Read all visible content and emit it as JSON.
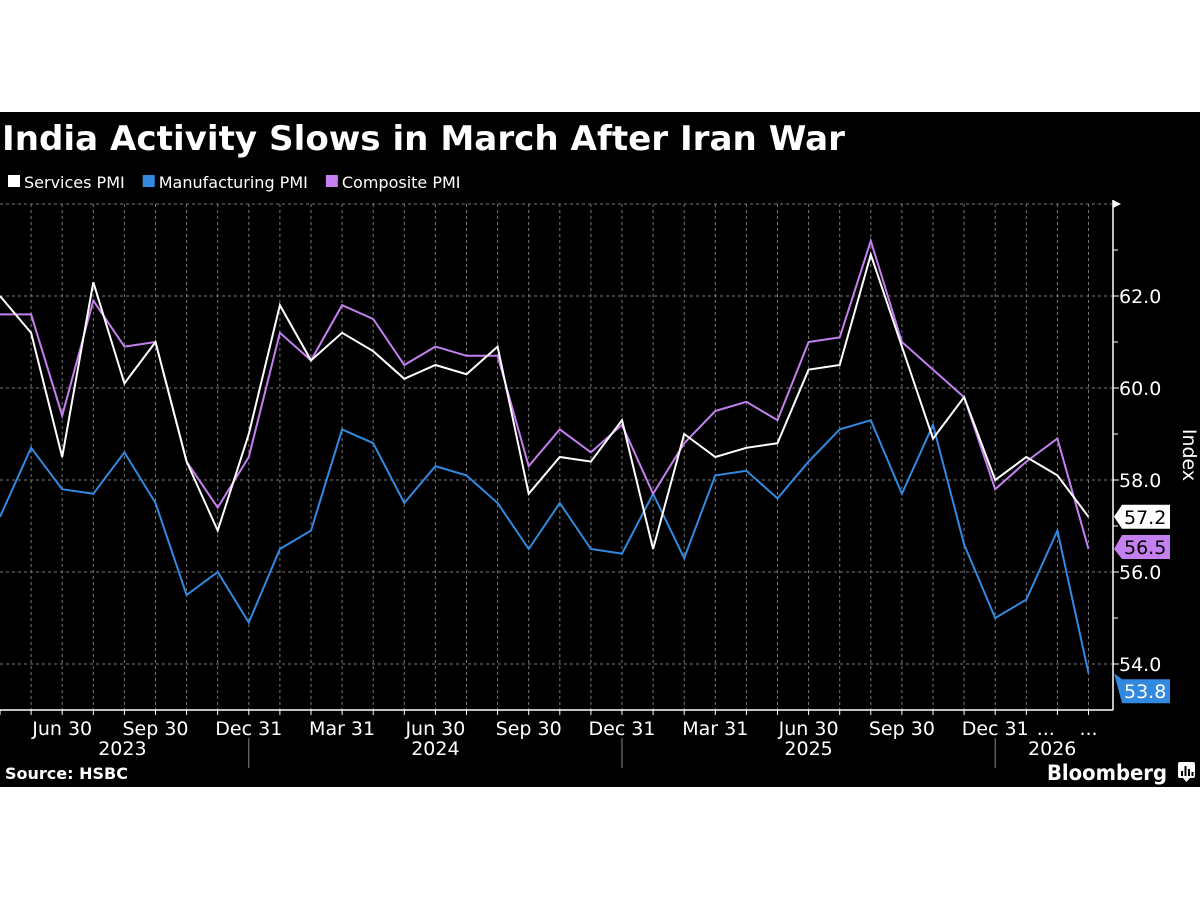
{
  "chart_data": {
    "type": "line",
    "title": "India Activity Slows in March After Iran War",
    "ylabel": "Index",
    "ylim": [
      53.0,
      64.0
    ],
    "y_ticks": [
      "54.0",
      "56.0",
      "58.0",
      "60.0",
      "62.0"
    ],
    "grid": true,
    "legend_position": "top-left",
    "x": [
      "2023-04-30",
      "2023-05-31",
      "2023-06-30",
      "2023-07-31",
      "2023-08-31",
      "2023-09-30",
      "2023-10-31",
      "2023-11-30",
      "2023-12-31",
      "2024-01-31",
      "2024-02-29",
      "2024-03-31",
      "2024-04-30",
      "2024-05-31",
      "2024-06-30",
      "2024-07-31",
      "2024-08-31",
      "2024-09-30",
      "2024-10-31",
      "2024-11-30",
      "2024-12-31",
      "2025-01-31",
      "2025-02-28",
      "2025-03-31",
      "2025-04-30",
      "2025-05-31",
      "2025-06-30",
      "2025-07-31",
      "2025-08-31",
      "2025-09-30",
      "2025-10-31",
      "2025-11-30",
      "2025-12-31",
      "2026-01-31",
      "2026-02-28",
      "2026-03-31"
    ],
    "x_ticks": [
      {
        "date": "2023-06-30",
        "label": "Jun 30"
      },
      {
        "date": "2023-09-30",
        "label": "Sep 30"
      },
      {
        "date": "2023-12-31",
        "label": "Dec 31"
      },
      {
        "date": "2024-03-31",
        "label": "Mar 31"
      },
      {
        "date": "2024-06-30",
        "label": "Jun 30"
      },
      {
        "date": "2024-09-30",
        "label": "Sep 30"
      },
      {
        "date": "2024-12-31",
        "label": "Dec 31"
      },
      {
        "date": "2025-03-31",
        "label": "Mar 31"
      },
      {
        "date": "2025-06-30",
        "label": "Jun 30"
      },
      {
        "date": "2025-09-30",
        "label": "Sep 30"
      },
      {
        "date": "2025-12-31",
        "label": "Dec 31"
      },
      {
        "date": "2026-01-31",
        "label": "..."
      },
      {
        "date": "2026-03-31",
        "label": "..."
      }
    ],
    "year_labels": [
      "2023",
      "2024",
      "2025",
      "2026"
    ],
    "series": [
      {
        "name": "Services PMI",
        "color": "#ffffff",
        "last_label": "57.2",
        "last_label_text_color": "#000000",
        "values": [
          62.0,
          61.2,
          58.5,
          62.3,
          60.1,
          61.0,
          58.4,
          56.9,
          59.0,
          61.8,
          60.6,
          61.2,
          60.8,
          60.2,
          60.5,
          60.3,
          60.9,
          57.7,
          58.5,
          58.4,
          59.3,
          56.5,
          59.0,
          58.5,
          58.7,
          58.8,
          60.4,
          60.5,
          62.9,
          60.9,
          58.9,
          59.8,
          58.0,
          58.5,
          58.1,
          57.2
        ]
      },
      {
        "name": "Manufacturing PMI",
        "color": "#3189e0",
        "last_label": "53.8",
        "last_label_text_color": "#ffffff",
        "values": [
          57.2,
          58.7,
          57.8,
          57.7,
          58.6,
          57.5,
          55.5,
          56.0,
          54.9,
          56.5,
          56.9,
          59.1,
          58.8,
          57.5,
          58.3,
          58.1,
          57.5,
          56.5,
          57.5,
          56.5,
          56.4,
          57.7,
          56.3,
          58.1,
          58.2,
          57.6,
          58.4,
          59.1,
          59.3,
          57.7,
          59.2,
          56.6,
          55.0,
          55.4,
          56.9,
          53.8
        ]
      },
      {
        "name": "Composite PMI",
        "color": "#c47ff0",
        "last_label": "56.5",
        "last_label_text_color": "#000000",
        "values": [
          61.6,
          61.6,
          59.4,
          61.9,
          60.9,
          61.0,
          58.4,
          57.4,
          58.5,
          61.2,
          60.6,
          61.8,
          61.5,
          60.5,
          60.9,
          60.7,
          60.7,
          58.3,
          59.1,
          58.6,
          59.2,
          57.7,
          58.8,
          59.5,
          59.7,
          59.3,
          61.0,
          61.1,
          63.2,
          61.0,
          60.4,
          59.8,
          57.8,
          58.4,
          58.9,
          56.5
        ]
      }
    ],
    "source": "Source: HSBC"
  },
  "branding": {
    "logo": "Bloomberg",
    "background": "#000000"
  }
}
